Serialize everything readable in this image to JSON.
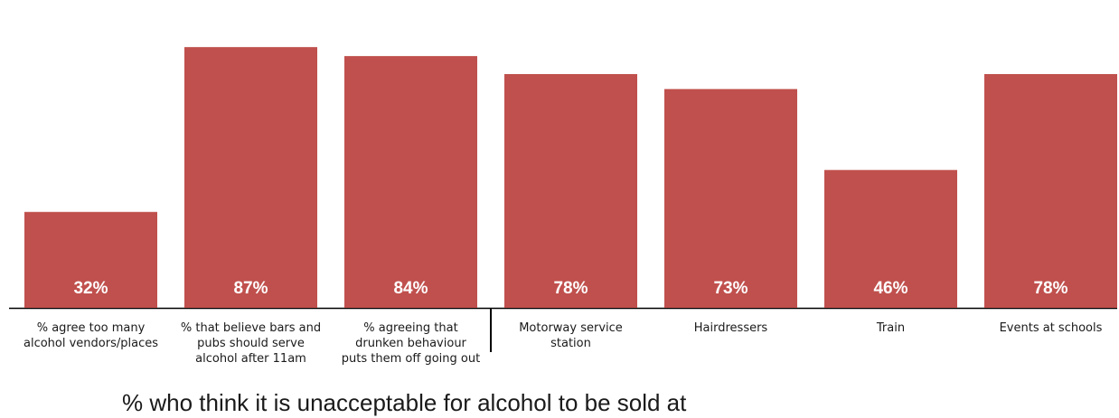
{
  "caption": "% who think it is unacceptable for alcohol to be sold at",
  "colors": {
    "bar": "#c0504d",
    "axis": "#000000"
  },
  "chart_data": {
    "type": "bar",
    "categories": [
      "% agree too many alcohol vendors/places",
      "% that believe bars and pubs should serve alcohol after 11am",
      "% agreeing that drunken behaviour puts them off going out",
      "Motorway service station",
      "Hairdressers",
      "Train",
      "Events at schools"
    ],
    "category_lines": [
      [
        "% agree too many",
        "alcohol vendors/places"
      ],
      [
        "% that believe bars and",
        "pubs should serve",
        "alcohol after 11am"
      ],
      [
        "% agreeing that",
        "drunken behaviour",
        "puts them off going out"
      ],
      [
        "Motorway service",
        "station"
      ],
      [
        "Hairdressers"
      ],
      [
        "Train"
      ],
      [
        "Events at schools"
      ]
    ],
    "values": [
      32,
      87,
      84,
      78,
      73,
      46,
      78
    ],
    "data_labels": [
      "32%",
      "87%",
      "84%",
      "78%",
      "73%",
      "46%",
      "78%"
    ],
    "ylim": [
      0,
      100
    ],
    "divider_after_index": 2,
    "grid": false,
    "legend": "none"
  }
}
